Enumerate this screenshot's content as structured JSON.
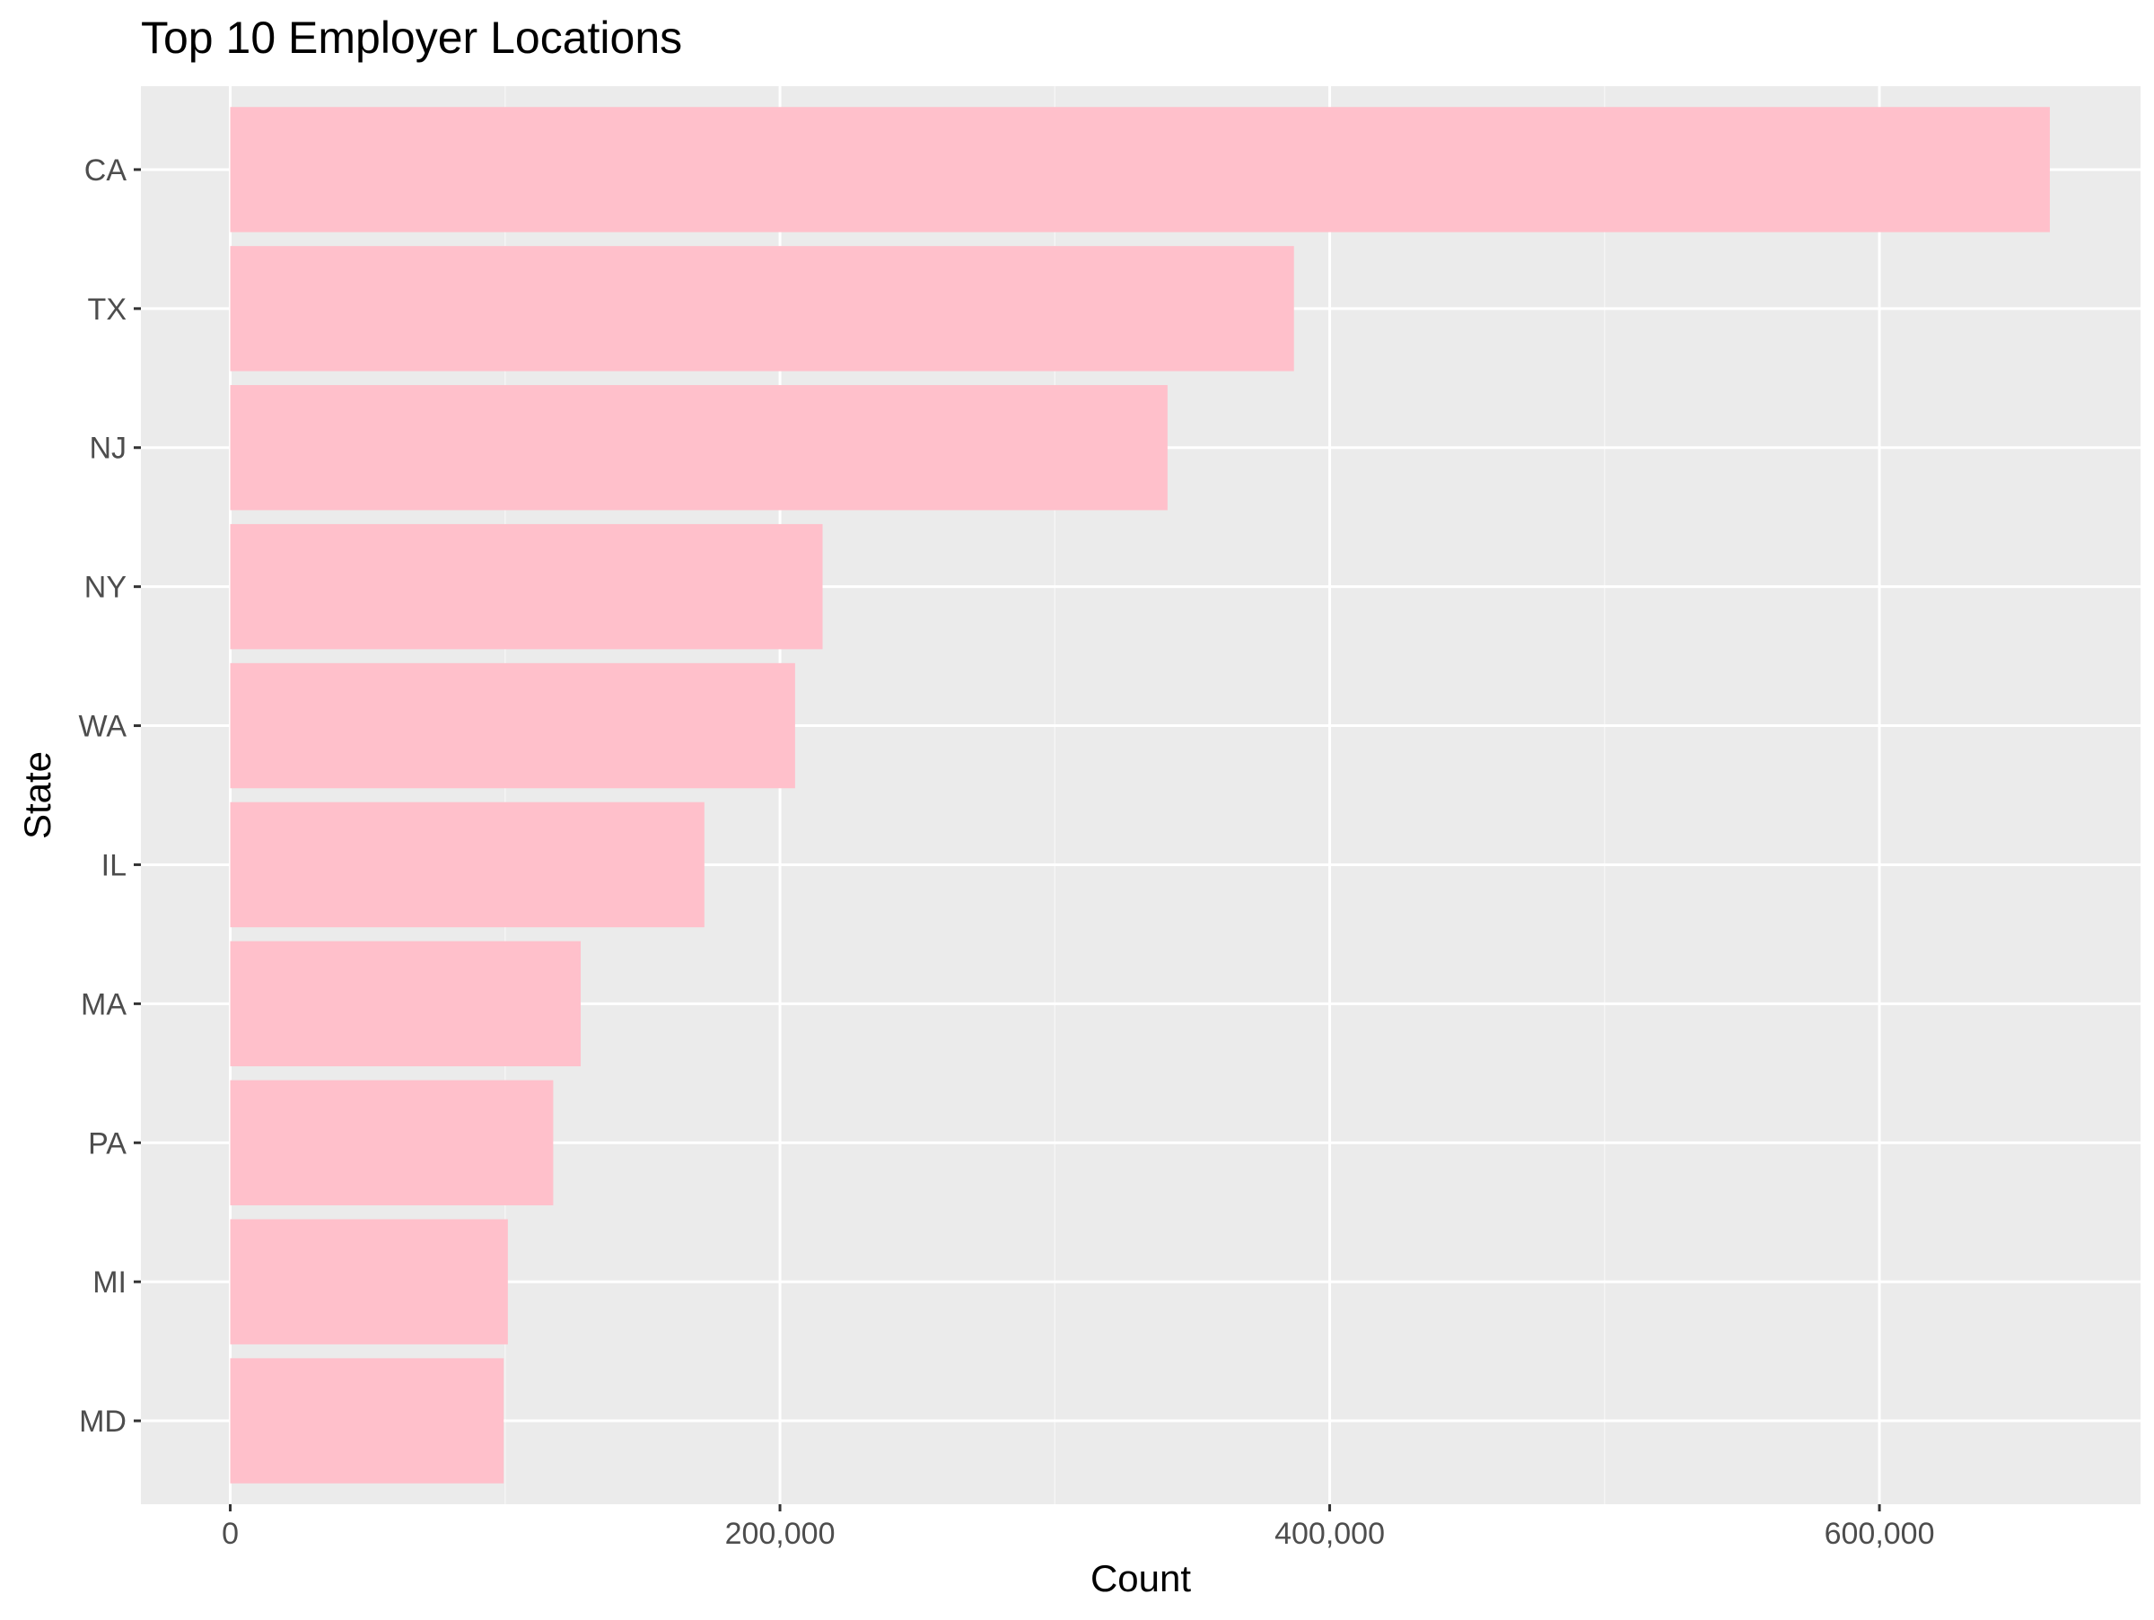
{
  "chart_data": {
    "type": "bar",
    "orientation": "horizontal",
    "title": "Top 10 Employer Locations",
    "xlabel": "Count",
    "ylabel": "State",
    "categories": [
      "CA",
      "TX",
      "NJ",
      "NY",
      "WA",
      "IL",
      "MA",
      "PA",
      "MI",
      "MD"
    ],
    "values": [
      662000,
      387000,
      341000,
      215500,
      205500,
      172500,
      127500,
      117500,
      101000,
      99500
    ],
    "xlim": [
      -32500,
      695000
    ],
    "x_ticks": [
      0,
      200000,
      400000,
      600000
    ],
    "x_tick_labels": [
      "0",
      "200,000",
      "400,000",
      "600,000"
    ],
    "grid": true,
    "colors": {
      "bar": "#ffc0cb",
      "panel_background": "#ebebeb",
      "grid_major": "#ffffff",
      "grid_minor": "#f5f5f5",
      "tick": "#333333",
      "tick_text": "#4d4d4d"
    }
  }
}
